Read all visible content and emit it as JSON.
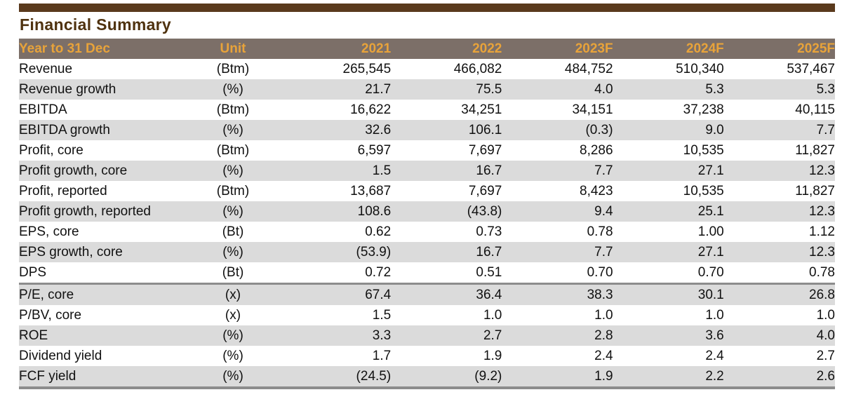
{
  "title": "Financial Summary",
  "colors": {
    "top_bar": "#5A3A1D",
    "title_text": "#4F320F",
    "header_bg": "#7C6F68",
    "header_text": "#E8A33A",
    "stripe": "#DBDBDB",
    "separator": "#8C8C8C"
  },
  "table": {
    "columns": [
      "Year to 31 Dec",
      "Unit",
      "2021",
      "2022",
      "2023F",
      "2024F",
      "2025F"
    ],
    "rows": [
      {
        "label": "Revenue",
        "unit": "(Btm)",
        "values": [
          "265,545",
          "466,082",
          "484,752",
          "510,340",
          "537,467"
        ],
        "section": 1
      },
      {
        "label": "Revenue growth",
        "unit": "(%)",
        "values": [
          "21.7",
          "75.5",
          "4.0",
          "5.3",
          "5.3"
        ],
        "section": 1
      },
      {
        "label": "EBITDA",
        "unit": "(Btm)",
        "values": [
          "16,622",
          "34,251",
          "34,151",
          "37,238",
          "40,115"
        ],
        "section": 1
      },
      {
        "label": "EBITDA growth",
        "unit": "(%)",
        "values": [
          "32.6",
          "106.1",
          "(0.3)",
          "9.0",
          "7.7"
        ],
        "section": 1
      },
      {
        "label": "Profit, core",
        "unit": "(Btm)",
        "values": [
          "6,597",
          "7,697",
          "8,286",
          "10,535",
          "11,827"
        ],
        "section": 1
      },
      {
        "label": "Profit growth, core",
        "unit": "(%)",
        "values": [
          "1.5",
          "16.7",
          "7.7",
          "27.1",
          "12.3"
        ],
        "section": 1
      },
      {
        "label": "Profit, reported",
        "unit": "(Btm)",
        "values": [
          "13,687",
          "7,697",
          "8,423",
          "10,535",
          "11,827"
        ],
        "section": 1
      },
      {
        "label": "Profit growth, reported",
        "unit": "(%)",
        "values": [
          "108.6",
          "(43.8)",
          "9.4",
          "25.1",
          "12.3"
        ],
        "section": 1
      },
      {
        "label": "EPS, core",
        "unit": "(Bt)",
        "values": [
          "0.62",
          "0.73",
          "0.78",
          "1.00",
          "1.12"
        ],
        "section": 1
      },
      {
        "label": "EPS growth, core",
        "unit": "(%)",
        "values": [
          "(53.9)",
          "16.7",
          "7.7",
          "27.1",
          "12.3"
        ],
        "section": 1
      },
      {
        "label": "DPS",
        "unit": "(Bt)",
        "values": [
          "0.72",
          "0.51",
          "0.70",
          "0.70",
          "0.78"
        ],
        "section": 1
      },
      {
        "label": "P/E, core",
        "unit": "(x)",
        "values": [
          "67.4",
          "36.4",
          "38.3",
          "30.1",
          "26.8"
        ],
        "section": 2
      },
      {
        "label": "P/BV, core",
        "unit": "(x)",
        "values": [
          "1.5",
          "1.0",
          "1.0",
          "1.0",
          "1.0"
        ],
        "section": 2
      },
      {
        "label": "ROE",
        "unit": "(%)",
        "values": [
          "3.3",
          "2.7",
          "2.8",
          "3.6",
          "4.0"
        ],
        "section": 2
      },
      {
        "label": "Dividend yield",
        "unit": "(%)",
        "values": [
          "1.7",
          "1.9",
          "2.4",
          "2.4",
          "2.7"
        ],
        "section": 2
      },
      {
        "label": "FCF yield",
        "unit": "(%)",
        "values": [
          "(24.5)",
          "(9.2)",
          "1.9",
          "2.2",
          "2.6"
        ],
        "section": 2
      }
    ]
  }
}
